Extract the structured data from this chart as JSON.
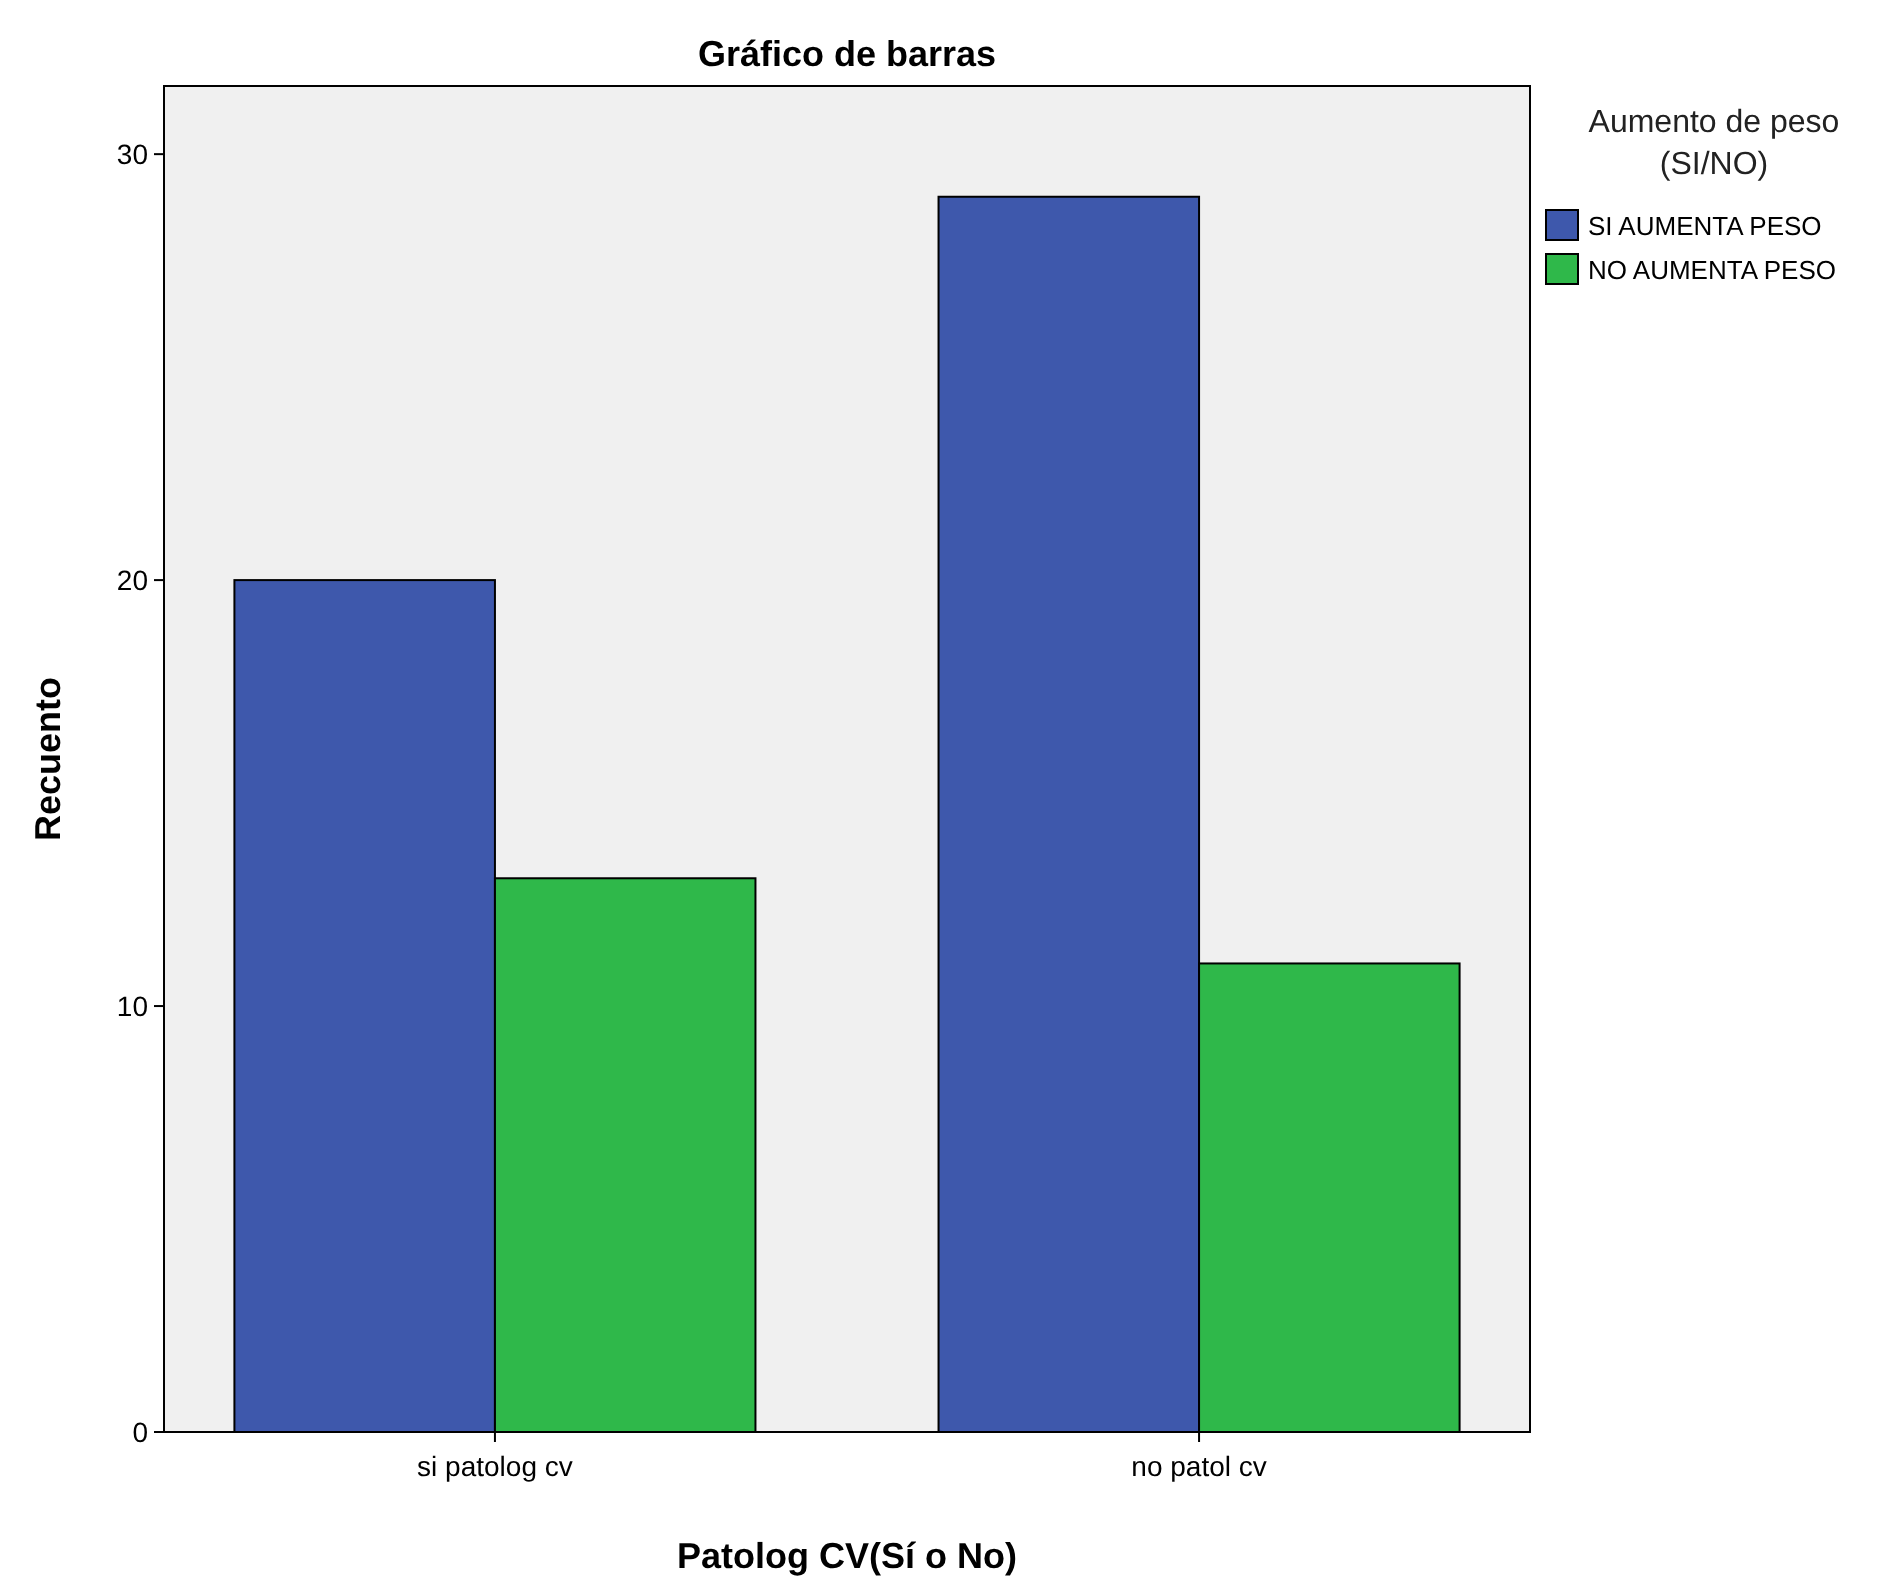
{
  "chart_data": {
    "type": "bar",
    "title": "Gráfico de barras",
    "xlabel": "Patolog CV(Sí o No)",
    "ylabel": "Recuento",
    "legend_title": "Aumento de peso (SI/NO)",
    "categories": [
      "si patolog cv",
      "no patol cv"
    ],
    "series": [
      {
        "name": "SI AUMENTA PESO",
        "color": "#3e58ac",
        "values": [
          20,
          29
        ]
      },
      {
        "name": "NO AUMENTA PESO",
        "color": "#2fb84a",
        "values": [
          13,
          11
        ]
      }
    ],
    "ylim": [
      0,
      31.6
    ],
    "yticks": [
      0,
      10,
      20,
      30
    ],
    "grid": false,
    "legend": "top right"
  }
}
